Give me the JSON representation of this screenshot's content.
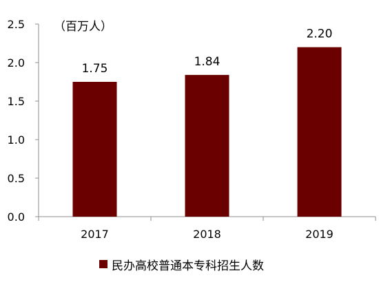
{
  "chart_data": {
    "type": "bar",
    "unit_label": "（百万人）",
    "categories": [
      "2017",
      "2018",
      "2019"
    ],
    "series": [
      {
        "name": "民办高校普通本专科招生人数",
        "values": [
          1.75,
          1.84,
          2.2
        ]
      }
    ],
    "data_labels": [
      "1.75",
      "1.84",
      "2.20"
    ],
    "y_ticks": [
      "0.0",
      "0.5",
      "1.0",
      "1.5",
      "2.0",
      "2.5"
    ],
    "ylim": [
      0,
      2.5
    ],
    "grid": false,
    "legend_position": "bottom"
  },
  "colors": {
    "bar": "#6b0000",
    "axis": "#8c8c8c",
    "text": "#000000"
  }
}
